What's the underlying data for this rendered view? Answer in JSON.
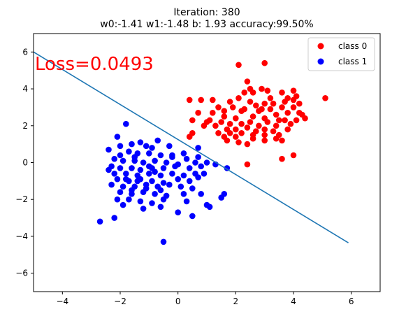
{
  "chart_data": {
    "type": "scatter",
    "title_line1": "Iteration: 380",
    "title_line2": "w0:-1.41 w1:-1.48 b: 1.93 accuracy:99.50%",
    "annotation": "Loss=0.0493",
    "xlim": [
      -5,
      7
    ],
    "ylim": [
      -7,
      7
    ],
    "xticks": [
      -4,
      -2,
      0,
      2,
      4,
      6
    ],
    "yticks": [
      -6,
      -4,
      -2,
      0,
      2,
      4,
      6
    ],
    "grid": false,
    "legend_position": "top-right",
    "colors": {
      "class0": "#ff0000",
      "class1": "#0000ff",
      "boundary": "#1f77b4",
      "annotation": "#ff0000"
    },
    "series": [
      {
        "name": "class 0",
        "points": [
          [
            2.1,
            5.3
          ],
          [
            3.0,
            5.4
          ],
          [
            2.4,
            4.4
          ],
          [
            2.5,
            4.0
          ],
          [
            2.9,
            4.0
          ],
          [
            3.1,
            3.9
          ],
          [
            3.6,
            3.8
          ],
          [
            4.0,
            3.9
          ],
          [
            4.1,
            3.6
          ],
          [
            3.8,
            3.5
          ],
          [
            2.6,
            3.8
          ],
          [
            0.4,
            3.4
          ],
          [
            0.8,
            3.4
          ],
          [
            1.2,
            3.4
          ],
          [
            1.8,
            3.3
          ],
          [
            2.1,
            3.5
          ],
          [
            2.5,
            3.3
          ],
          [
            2.7,
            3.1
          ],
          [
            3.0,
            3.2
          ],
          [
            3.3,
            3.2
          ],
          [
            3.6,
            3.0
          ],
          [
            4.0,
            3.0
          ],
          [
            4.2,
            3.2
          ],
          [
            1.4,
            3.0
          ],
          [
            1.9,
            3.0
          ],
          [
            1.6,
            2.8
          ],
          [
            2.3,
            2.9
          ],
          [
            2.8,
            2.8
          ],
          [
            3.2,
            2.9
          ],
          [
            3.8,
            2.7
          ],
          [
            4.3,
            2.6
          ],
          [
            0.7,
            2.7
          ],
          [
            1.2,
            2.7
          ],
          [
            1.6,
            2.5
          ],
          [
            2.0,
            2.4
          ],
          [
            2.6,
            2.5
          ],
          [
            3.0,
            2.4
          ],
          [
            3.4,
            2.6
          ],
          [
            3.7,
            2.3
          ],
          [
            4.1,
            2.3
          ],
          [
            4.4,
            2.4
          ],
          [
            0.5,
            2.3
          ],
          [
            1.1,
            2.3
          ],
          [
            1.5,
            2.2
          ],
          [
            1.8,
            2.1
          ],
          [
            2.2,
            2.1
          ],
          [
            2.5,
            2.2
          ],
          [
            2.8,
            2.0
          ],
          [
            3.1,
            2.2
          ],
          [
            3.4,
            2.0
          ],
          [
            3.9,
            2.1
          ],
          [
            0.9,
            2.0
          ],
          [
            1.3,
            2.0
          ],
          [
            1.7,
            1.8
          ],
          [
            2.0,
            1.8
          ],
          [
            2.4,
            1.9
          ],
          [
            2.7,
            1.7
          ],
          [
            3.0,
            1.8
          ],
          [
            3.3,
            1.7
          ],
          [
            3.8,
            1.8
          ],
          [
            0.5,
            1.6
          ],
          [
            1.4,
            1.6
          ],
          [
            1.8,
            1.6
          ],
          [
            2.2,
            1.6
          ],
          [
            2.6,
            1.5
          ],
          [
            3.0,
            1.5
          ],
          [
            3.5,
            1.5
          ],
          [
            0.4,
            1.4
          ],
          [
            1.7,
            1.2
          ],
          [
            2.1,
            1.1
          ],
          [
            2.6,
            1.3
          ],
          [
            3.0,
            1.2
          ],
          [
            3.4,
            1.3
          ],
          [
            3.6,
            1.2
          ],
          [
            1.6,
            1.4
          ],
          [
            2.4,
            1.0
          ],
          [
            2.0,
            1.4
          ],
          [
            5.1,
            3.5
          ],
          [
            3.6,
            0.2
          ],
          [
            4.0,
            0.4
          ],
          [
            2.4,
            -0.1
          ],
          [
            4.2,
            2.7
          ],
          [
            3.5,
            2.3
          ],
          [
            2.9,
            2.9
          ],
          [
            1.0,
            2.2
          ],
          [
            2.2,
            2.8
          ],
          [
            3.7,
            3.3
          ],
          [
            4.0,
            3.4
          ],
          [
            3.2,
            3.5
          ],
          [
            2.3,
            3.8
          ]
        ]
      },
      {
        "name": "class 1",
        "points": [
          [
            -1.8,
            2.1
          ],
          [
            -2.1,
            1.4
          ],
          [
            -1.6,
            1.0
          ],
          [
            -1.3,
            1.1
          ],
          [
            -1.1,
            0.9
          ],
          [
            -0.7,
            1.2
          ],
          [
            -0.9,
            0.8
          ],
          [
            -0.3,
            0.9
          ],
          [
            0.2,
            0.5
          ],
          [
            0.7,
            0.8
          ],
          [
            -2.4,
            0.7
          ],
          [
            -2.0,
            0.4
          ],
          [
            -1.7,
            0.6
          ],
          [
            -1.4,
            0.5
          ],
          [
            -1.0,
            0.5
          ],
          [
            -0.6,
            0.4
          ],
          [
            -0.2,
            0.3
          ],
          [
            0.3,
            0.2
          ],
          [
            0.7,
            0.3
          ],
          [
            -2.2,
            0.2
          ],
          [
            -1.9,
            0.1
          ],
          [
            -1.5,
            0.1
          ],
          [
            -1.2,
            0.0
          ],
          [
            -0.8,
            0.1
          ],
          [
            -0.4,
            0.0
          ],
          [
            0.0,
            -0.1
          ],
          [
            0.6,
            0.0
          ],
          [
            1.0,
            0.0
          ],
          [
            -2.3,
            -0.2
          ],
          [
            -2.0,
            -0.3
          ],
          [
            -1.6,
            -0.3
          ],
          [
            -1.3,
            -0.4
          ],
          [
            -0.9,
            -0.3
          ],
          [
            -0.5,
            -0.3
          ],
          [
            -0.1,
            -0.2
          ],
          [
            0.4,
            -0.3
          ],
          [
            0.8,
            -0.2
          ],
          [
            1.3,
            -0.1
          ],
          [
            1.7,
            -0.3
          ],
          [
            -2.2,
            -0.6
          ],
          [
            -1.8,
            -0.6
          ],
          [
            -1.4,
            -0.7
          ],
          [
            -1.0,
            -0.6
          ],
          [
            -0.6,
            -0.7
          ],
          [
            -0.2,
            -0.6
          ],
          [
            0.2,
            -0.7
          ],
          [
            0.6,
            -0.6
          ],
          [
            -2.1,
            -0.9
          ],
          [
            -1.7,
            -1.0
          ],
          [
            -1.3,
            -0.9
          ],
          [
            -0.9,
            -1.0
          ],
          [
            -0.5,
            -1.1
          ],
          [
            0.0,
            -0.9
          ],
          [
            0.4,
            -1.0
          ],
          [
            0.7,
            -0.8
          ],
          [
            -2.3,
            -1.2
          ],
          [
            -1.9,
            -1.3
          ],
          [
            -1.5,
            -1.3
          ],
          [
            -1.1,
            -1.4
          ],
          [
            -0.7,
            -1.3
          ],
          [
            -0.3,
            -1.2
          ],
          [
            0.1,
            -1.3
          ],
          [
            0.5,
            -1.4
          ],
          [
            -2.0,
            -1.6
          ],
          [
            -1.6,
            -1.7
          ],
          [
            -1.2,
            -1.6
          ],
          [
            -0.8,
            -1.7
          ],
          [
            -0.4,
            -1.8
          ],
          [
            0.2,
            -1.7
          ],
          [
            0.8,
            -1.7
          ],
          [
            1.6,
            -1.7
          ],
          [
            -2.1,
            -2.0
          ],
          [
            -1.7,
            -2.0
          ],
          [
            -1.3,
            -2.1
          ],
          [
            -0.9,
            -2.2
          ],
          [
            -0.5,
            -2.0
          ],
          [
            0.3,
            -2.1
          ],
          [
            1.5,
            -1.9
          ],
          [
            -1.9,
            -2.3
          ],
          [
            -1.2,
            -2.5
          ],
          [
            -0.6,
            -2.4
          ],
          [
            0.0,
            -2.7
          ],
          [
            0.5,
            -2.9
          ],
          [
            1.0,
            -2.3
          ],
          [
            1.1,
            -2.4
          ],
          [
            -2.2,
            -3.0
          ],
          [
            -2.7,
            -3.2
          ],
          [
            -0.5,
            -4.3
          ],
          [
            -1.4,
            -1.0
          ],
          [
            -1.8,
            -0.9
          ],
          [
            -1.0,
            -0.2
          ],
          [
            -0.2,
            0.4
          ],
          [
            0.9,
            -0.6
          ],
          [
            -2.0,
            0.9
          ],
          [
            -1.5,
            0.3
          ],
          [
            -0.8,
            -0.5
          ],
          [
            -1.1,
            -1.2
          ],
          [
            -0.6,
            -1.5
          ],
          [
            -2.4,
            -0.4
          ],
          [
            -1.6,
            -1.5
          ]
        ]
      }
    ],
    "decision_boundary": {
      "x": [
        -5.0,
        5.9
      ],
      "y": [
        6.0,
        -4.35
      ]
    }
  }
}
